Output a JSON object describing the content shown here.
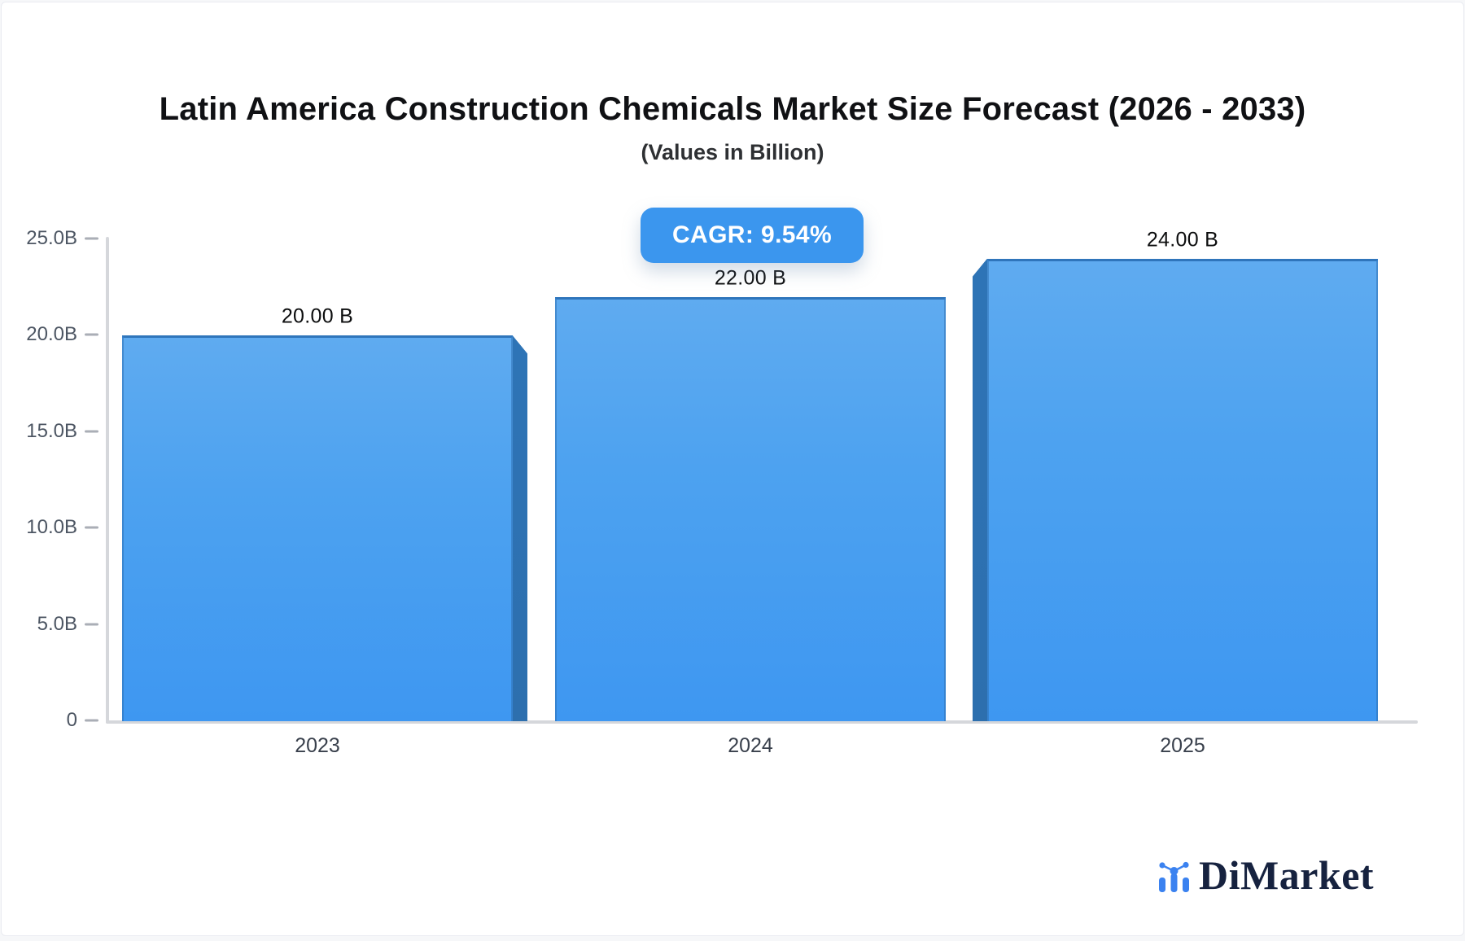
{
  "header": {
    "title": "Latin America Construction Chemicals Market Size Forecast (2026 - 2033)",
    "subtitle": "(Values in Billion)"
  },
  "badge": {
    "label": "CAGR: 9.54%",
    "color": "#3b96ee"
  },
  "chart_data": {
    "type": "bar",
    "title": "Latin America Construction Chemicals Market Size Forecast (2026 - 2033)",
    "subtitle": "(Values in Billion)",
    "categories": [
      "2023",
      "2024",
      "2025"
    ],
    "values": [
      20,
      22,
      24
    ],
    "value_labels": [
      "20.00 B",
      "22.00 B",
      "24.00 B"
    ],
    "cagr_annotation": "CAGR: 9.54%",
    "xlabel": "",
    "ylabel": "",
    "ylim": [
      0,
      25
    ],
    "yticks": [
      {
        "value": 0,
        "label": "0"
      },
      {
        "value": 5,
        "label": "5.0B"
      },
      {
        "value": 10,
        "label": "10.0B"
      },
      {
        "value": 15,
        "label": "15.0B"
      },
      {
        "value": 20,
        "label": "20.0B"
      },
      {
        "value": 25,
        "label": "25.0B"
      }
    ],
    "grid": false,
    "legend": false,
    "bar_color_top": "#5fabf0",
    "bar_color_bottom": "#3e97f1",
    "bar_side_color": "#2e74b6"
  },
  "logo": {
    "text": "DiMarket",
    "icon": "mini-bar-chart-logo-icon",
    "text_color": "#16223f",
    "accent_color": "#3b82f0"
  }
}
